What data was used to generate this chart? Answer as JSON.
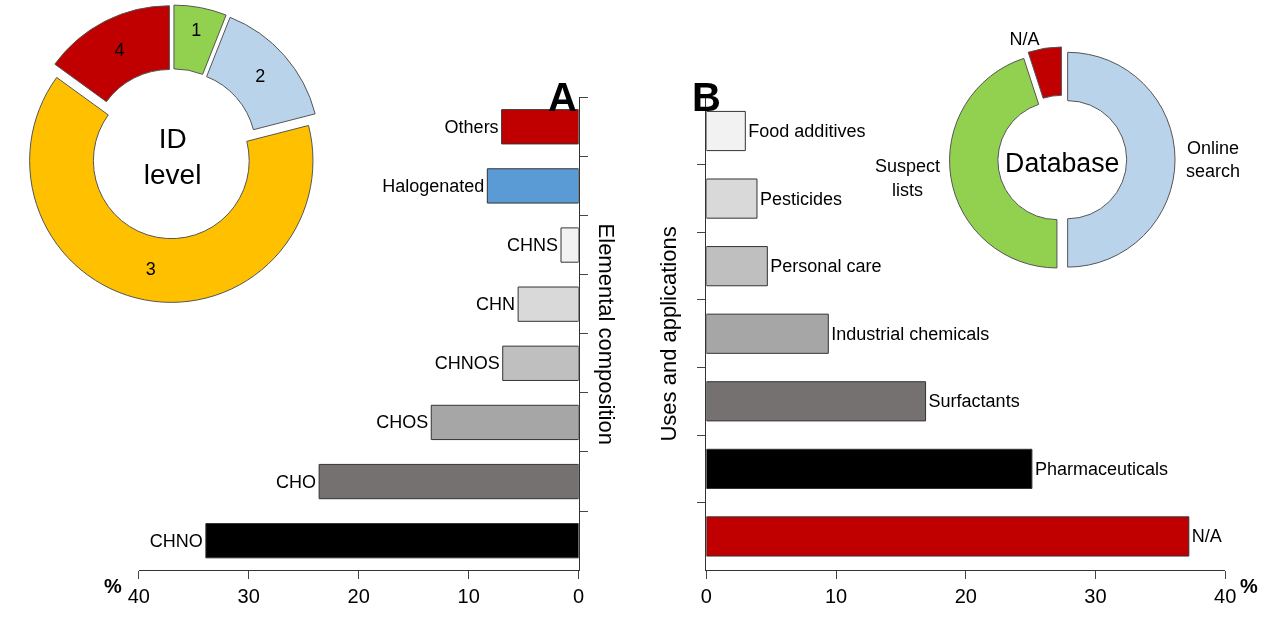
{
  "chart_data": [
    {
      "type": "donut",
      "title": "ID level",
      "categories": [
        "1",
        "2",
        "3",
        "4"
      ],
      "values": [
        6,
        15,
        64,
        15
      ],
      "colors": [
        "#92d050",
        "#b8d3ea",
        "#ffc000",
        "#c00000"
      ]
    },
    {
      "type": "bar",
      "title": "A",
      "orientation": "horizontal",
      "ylabel": "Elemental composition",
      "xlabel": "%",
      "categories": [
        "Others",
        "Halogenated",
        "CHNS",
        "CHN",
        "CHNOS",
        "CHOS",
        "CHO",
        "CHNO"
      ],
      "values": [
        7.0,
        8.3,
        1.6,
        5.5,
        6.9,
        13.4,
        23.6,
        33.9
      ],
      "colors": [
        "#c00000",
        "#5b9bd5",
        "#f2f2f2",
        "#d9d9d9",
        "#bfbfbf",
        "#a6a6a6",
        "#767171",
        "#000000"
      ],
      "xlim": [
        40,
        0
      ],
      "xticks": [
        40,
        30,
        20,
        10,
        0
      ]
    },
    {
      "type": "bar",
      "title": "B",
      "orientation": "horizontal",
      "ylabel": "Uses and applications",
      "xlabel": "%",
      "categories": [
        "Food additives",
        "Pesticides",
        "Personal care",
        "Industrial chemicals",
        "Surfactants",
        "Pharmaceuticals",
        "N/A"
      ],
      "values": [
        3.0,
        3.9,
        4.7,
        9.4,
        16.9,
        25.1,
        37.2
      ],
      "colors": [
        "#f2f2f2",
        "#d9d9d9",
        "#bfbfbf",
        "#a6a6a6",
        "#767171",
        "#000000",
        "#c00000"
      ],
      "xlim": [
        0,
        40
      ],
      "xticks": [
        0,
        10,
        20,
        30,
        40
      ]
    },
    {
      "type": "donut",
      "title": "Database",
      "categories": [
        "Online search",
        "Suspect lists",
        "N/A"
      ],
      "values": [
        50,
        45,
        5
      ],
      "colors": [
        "#b8d3ea",
        "#92d050",
        "#c00000"
      ]
    }
  ]
}
